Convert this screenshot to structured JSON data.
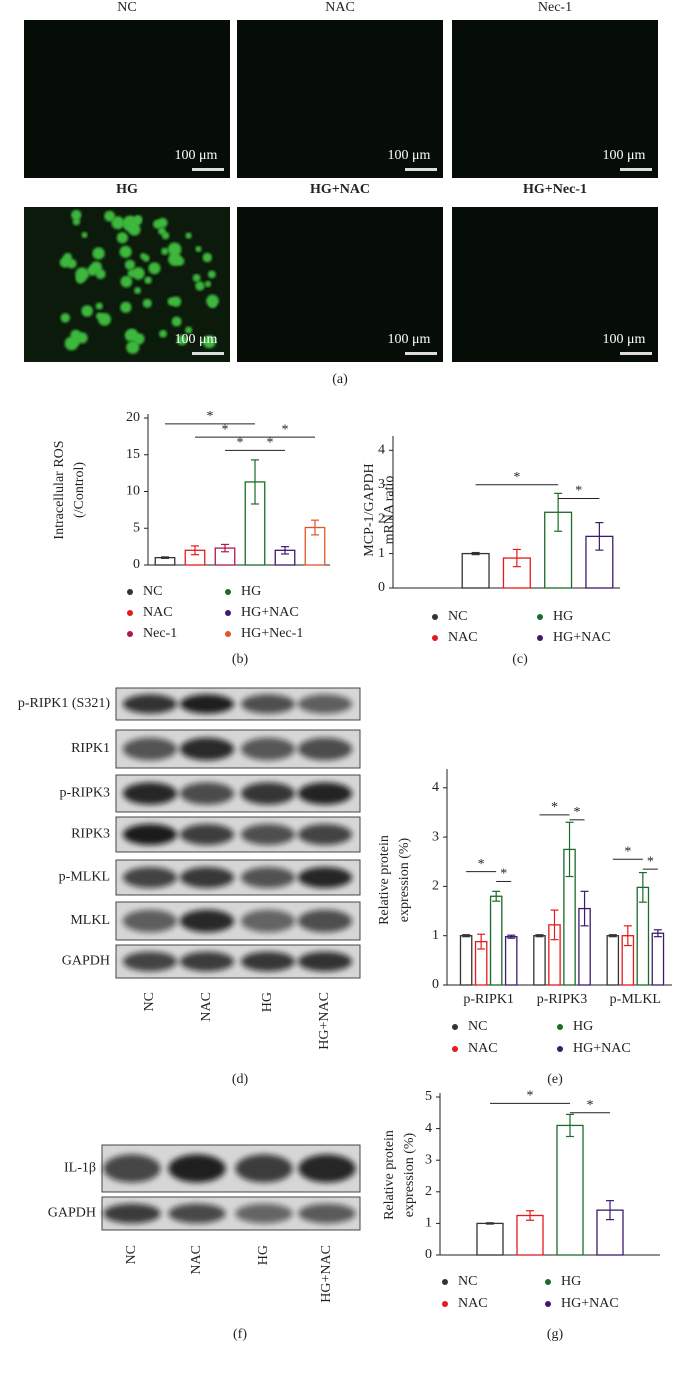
{
  "figure": {
    "panel_labels": [
      "(a)",
      "(b)",
      "(c)",
      "(d)",
      "(e)",
      "(f)",
      "(g)"
    ],
    "images": {
      "titles": [
        "NC",
        "NAC",
        "Nec-1",
        "HG",
        "HG+NAC",
        "HG+Nec-1"
      ],
      "scale_bar": "100 μm"
    },
    "blot_d": {
      "rows": [
        "p-RIPK1 (S321)",
        "RIPK1",
        "p-RIPK3",
        "RIPK3",
        "p-MLKL",
        "MLKL",
        "GAPDH"
      ],
      "columns": [
        "NC",
        "NAC",
        "HG",
        "HG+NAC"
      ]
    },
    "blot_f": {
      "rows": [
        "IL-1β",
        "GAPDH"
      ],
      "columns": [
        "NC",
        "NAC",
        "HG",
        "HG+NAC"
      ]
    }
  },
  "chart_data": [
    {
      "type": "bar",
      "ylabel": [
        "Intracellular ROS",
        "(/Control)"
      ],
      "categories": [
        "NC",
        "NAC",
        "Nec-1",
        "HG",
        "HG+NAC",
        "HG+Nec-1"
      ],
      "values": [
        1.0,
        2.0,
        2.3,
        11.3,
        2.0,
        5.1
      ],
      "errors": [
        0.1,
        0.6,
        0.5,
        3.0,
        0.5,
        1.0
      ],
      "colors": [
        "#333333",
        "#e41a1c",
        "#b0174e",
        "#1b6b2a",
        "#3d1a6e",
        "#e0552a"
      ],
      "ylim": [
        0,
        20
      ],
      "yticks": [
        0,
        5,
        10,
        15,
        20
      ],
      "annotations": [
        "*",
        "*",
        "*",
        "*",
        "*"
      ]
    },
    {
      "type": "bar",
      "ylabel": [
        "MCP-1/GAPDH",
        "mRNA ratio"
      ],
      "categories": [
        "NC",
        "NAC",
        "HG",
        "HG+NAC"
      ],
      "values": [
        1.0,
        0.87,
        2.2,
        1.5
      ],
      "errors": [
        0.03,
        0.25,
        0.55,
        0.4
      ],
      "colors": [
        "#333333",
        "#e41a1c",
        "#1b6b2a",
        "#3d1a6e"
      ],
      "ylim": [
        0,
        4.3
      ],
      "yticks": [
        0,
        1,
        2,
        3,
        4
      ],
      "annotations": [
        "*",
        "*"
      ]
    },
    {
      "type": "grouped_bar",
      "ylabel": [
        "Relative protein",
        "expression (%)"
      ],
      "categories": [
        "p-RIPK1",
        "p-RIPK3",
        "p-MLKL"
      ],
      "series": [
        {
          "name": "NC",
          "color": "#333333",
          "values": [
            1.0,
            1.0,
            1.0
          ],
          "errors": [
            0.02,
            0.02,
            0.02
          ]
        },
        {
          "name": "NAC",
          "color": "#e41a1c",
          "values": [
            0.88,
            1.22,
            1.0
          ],
          "errors": [
            0.15,
            0.3,
            0.2
          ]
        },
        {
          "name": "HG",
          "color": "#1b6b2a",
          "values": [
            1.8,
            2.75,
            1.98
          ],
          "errors": [
            0.1,
            0.55,
            0.3
          ]
        },
        {
          "name": "HG+NAC",
          "color": "#3d1a6e",
          "values": [
            0.98,
            1.55,
            1.05
          ],
          "errors": [
            0.03,
            0.35,
            0.07
          ]
        }
      ],
      "ylim": [
        0,
        4.3
      ],
      "yticks": [
        0,
        1,
        2,
        3,
        4
      ],
      "annotations": [
        "*",
        "*",
        "*",
        "*",
        "*",
        "*"
      ]
    },
    {
      "type": "bar",
      "ylabel": [
        "Relative protein",
        "expression (%)"
      ],
      "categories": [
        "NC",
        "NAC",
        "HG",
        "HG+NAC"
      ],
      "values": [
        1.0,
        1.25,
        4.1,
        1.42
      ],
      "errors": [
        0.02,
        0.15,
        0.35,
        0.3
      ],
      "colors": [
        "#333333",
        "#e41a1c",
        "#1b6b2a",
        "#3d1a6e"
      ],
      "ylim": [
        0,
        5
      ],
      "yticks": [
        0,
        1,
        2,
        3,
        4,
        5
      ],
      "annotations": [
        "*",
        "*"
      ]
    }
  ]
}
